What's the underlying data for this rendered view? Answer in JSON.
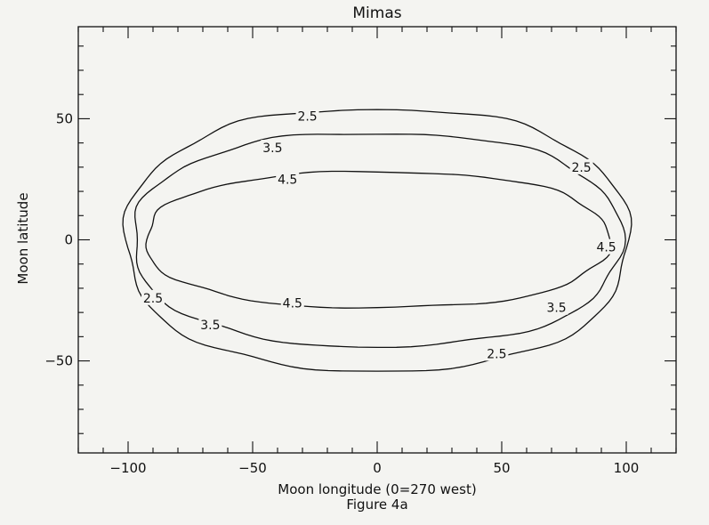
{
  "chart_data": {
    "type": "contour",
    "title": "Mimas",
    "xlabel": "Moon longitude (0=270 west)",
    "ylabel": "Moon latitude",
    "caption": "Figure 4a",
    "xlim": [
      -120,
      120
    ],
    "ylim": [
      -88,
      88
    ],
    "x_ticks": [
      -100,
      -50,
      0,
      50,
      100
    ],
    "x_tick_labels": [
      "−100",
      "−50",
      "0",
      "50",
      "100"
    ],
    "y_ticks": [
      -50,
      0,
      50
    ],
    "y_tick_labels": [
      "−50",
      "0",
      "50"
    ],
    "x_minor_step": 10,
    "y_minor_step": 10,
    "grid": false,
    "series": [
      {
        "level": "2.5",
        "a": 101,
        "b": 54
      },
      {
        "level": "3.5",
        "a": 98,
        "b": 44
      },
      {
        "level": "4.5",
        "a": 93,
        "b": 28
      }
    ],
    "contour_labels": [
      {
        "text": "2.5",
        "x": -28,
        "y": 51
      },
      {
        "text": "2.5",
        "x": 82,
        "y": 30
      },
      {
        "text": "2.5",
        "x": -90,
        "y": -24
      },
      {
        "text": "2.5",
        "x": 48,
        "y": -47
      },
      {
        "text": "3.5",
        "x": -42,
        "y": 38
      },
      {
        "text": "3.5",
        "x": -67,
        "y": -35
      },
      {
        "text": "3.5",
        "x": 72,
        "y": -28
      },
      {
        "text": "4.5",
        "x": -36,
        "y": 25
      },
      {
        "text": "4.5",
        "x": -34,
        "y": -26
      },
      {
        "text": "4.5",
        "x": 92,
        "y": -3
      }
    ],
    "stroke_color": "#111111",
    "background_color": "#f4f4f1"
  }
}
